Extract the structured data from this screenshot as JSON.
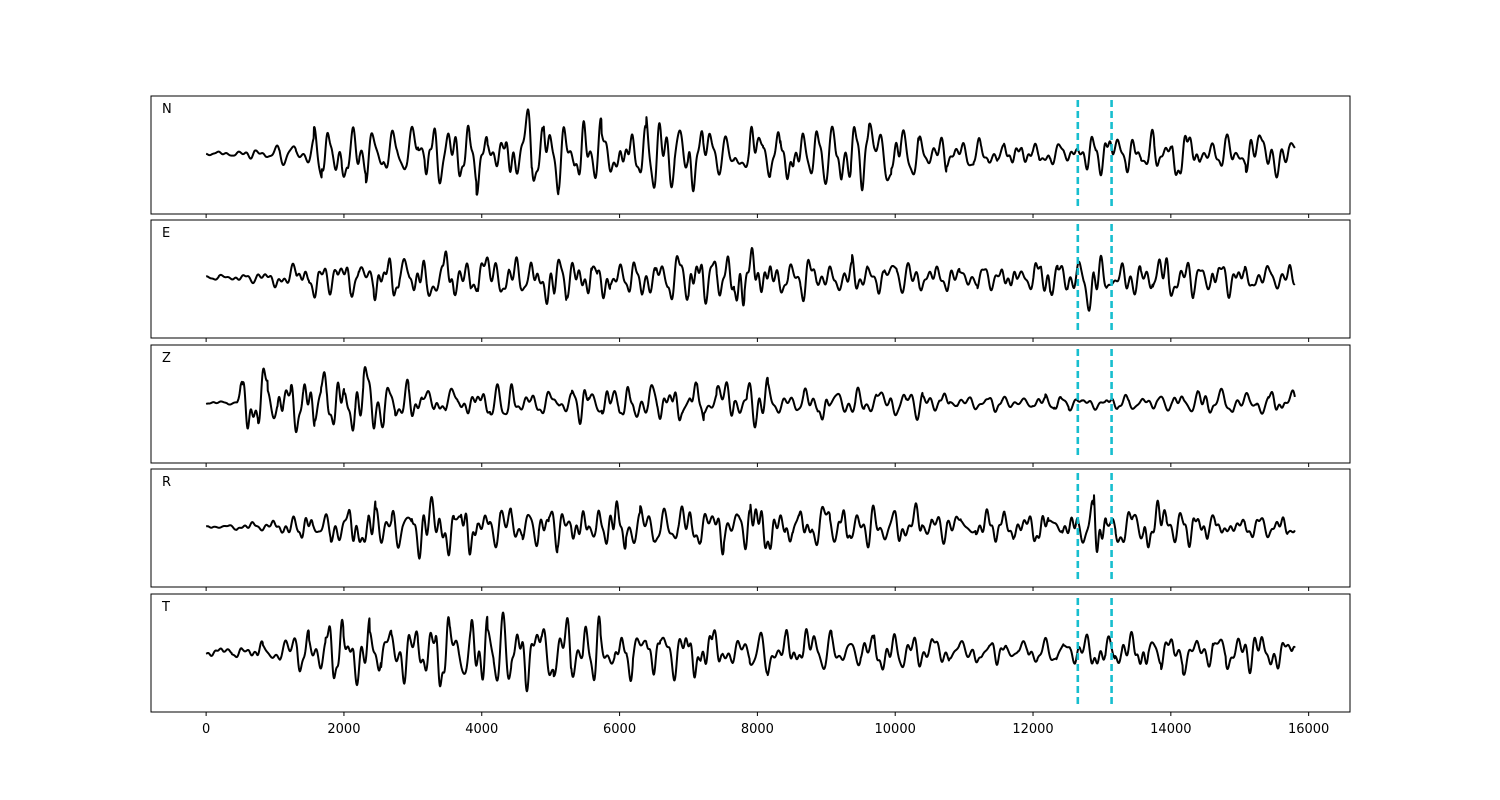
{
  "chart_data": {
    "type": "line",
    "panel_labels": [
      "N",
      "E",
      "Z",
      "R",
      "T"
    ],
    "x_ticks": [
      0,
      2000,
      4000,
      6000,
      8000,
      10000,
      12000,
      14000,
      16000
    ],
    "x_tick_labels": [
      "0",
      "2000",
      "4000",
      "6000",
      "8000",
      "10000",
      "12000",
      "14000",
      "16000"
    ],
    "xlim": [
      -800,
      16600
    ],
    "x_extent": [
      0,
      15800
    ],
    "markers": [
      12650,
      13140
    ],
    "grid": false,
    "colors": {
      "trace": "#000000",
      "marker": "#17becf",
      "frame": "#000000"
    },
    "series": [
      {
        "panel": "N",
        "x": [
          0,
          700,
          1500,
          1700,
          1900,
          2200,
          2900,
          3200,
          3500,
          4200,
          4520,
          5100,
          5500,
          6500,
          6950,
          7500,
          8200,
          8700,
          9200,
          9620,
          10500,
          11500,
          12500,
          12850,
          13600,
          14200,
          15000,
          15650,
          15800
        ],
        "amp": [
          0.05,
          0.12,
          0.45,
          0.65,
          0.7,
          0.6,
          0.8,
          0.85,
          0.8,
          0.75,
          1.0,
          0.95,
          0.7,
          0.85,
          0.9,
          0.55,
          0.55,
          0.6,
          0.7,
          1.0,
          0.45,
          0.35,
          0.3,
          0.6,
          0.45,
          0.5,
          0.45,
          0.55,
          0.3
        ]
      },
      {
        "panel": "E",
        "x": [
          0,
          700,
          1500,
          1700,
          2500,
          3200,
          4000,
          5000,
          6000,
          7000,
          7450,
          7840,
          8500,
          9500,
          10500,
          11500,
          12000,
          12700,
          12850,
          13100,
          13600,
          13900,
          14500,
          15000,
          15800
        ],
        "amp": [
          0.05,
          0.12,
          0.35,
          0.45,
          0.5,
          0.55,
          0.45,
          0.55,
          0.45,
          0.55,
          0.45,
          0.85,
          0.45,
          0.45,
          0.3,
          0.25,
          0.4,
          0.55,
          1.0,
          0.45,
          0.4,
          0.55,
          0.35,
          0.35,
          0.3
        ]
      },
      {
        "panel": "Z",
        "x": [
          0,
          450,
          500,
          800,
          900,
          1400,
          1700,
          2170,
          2400,
          2600,
          3000,
          3500,
          4000,
          5000,
          6500,
          7000,
          7850,
          8500,
          9500,
          10050,
          10500,
          11500,
          12500,
          13500,
          14500,
          15800
        ],
        "amp": [
          0.03,
          0.05,
          0.75,
          0.8,
          0.7,
          0.65,
          0.7,
          1.0,
          0.9,
          0.6,
          0.5,
          0.35,
          0.35,
          0.4,
          0.55,
          0.45,
          0.55,
          0.35,
          0.35,
          0.45,
          0.25,
          0.2,
          0.2,
          0.25,
          0.3,
          0.3
        ]
      },
      {
        "panel": "R",
        "x": [
          0,
          500,
          1000,
          1500,
          2500,
          3100,
          4000,
          5000,
          6000,
          7000,
          7850,
          8500,
          9500,
          10500,
          11500,
          12500,
          12850,
          13100,
          13950,
          14500,
          15800
        ],
        "amp": [
          0.03,
          0.08,
          0.2,
          0.35,
          0.55,
          0.6,
          0.5,
          0.5,
          0.55,
          0.55,
          0.7,
          0.45,
          0.45,
          0.4,
          0.3,
          0.35,
          1.0,
          0.4,
          0.6,
          0.25,
          0.2
        ]
      },
      {
        "panel": "T",
        "x": [
          0,
          600,
          1300,
          1700,
          2500,
          3400,
          4150,
          4530,
          5200,
          6000,
          7000,
          7500,
          8500,
          9500,
          10500,
          11500,
          12600,
          12850,
          13200,
          14000,
          15000,
          15600,
          15800
        ],
        "amp": [
          0.1,
          0.15,
          0.4,
          0.8,
          0.6,
          0.9,
          0.95,
          1.0,
          0.85,
          0.6,
          0.75,
          0.45,
          0.5,
          0.55,
          0.4,
          0.3,
          0.35,
          0.75,
          0.35,
          0.45,
          0.5,
          0.5,
          0.3
        ]
      }
    ]
  }
}
